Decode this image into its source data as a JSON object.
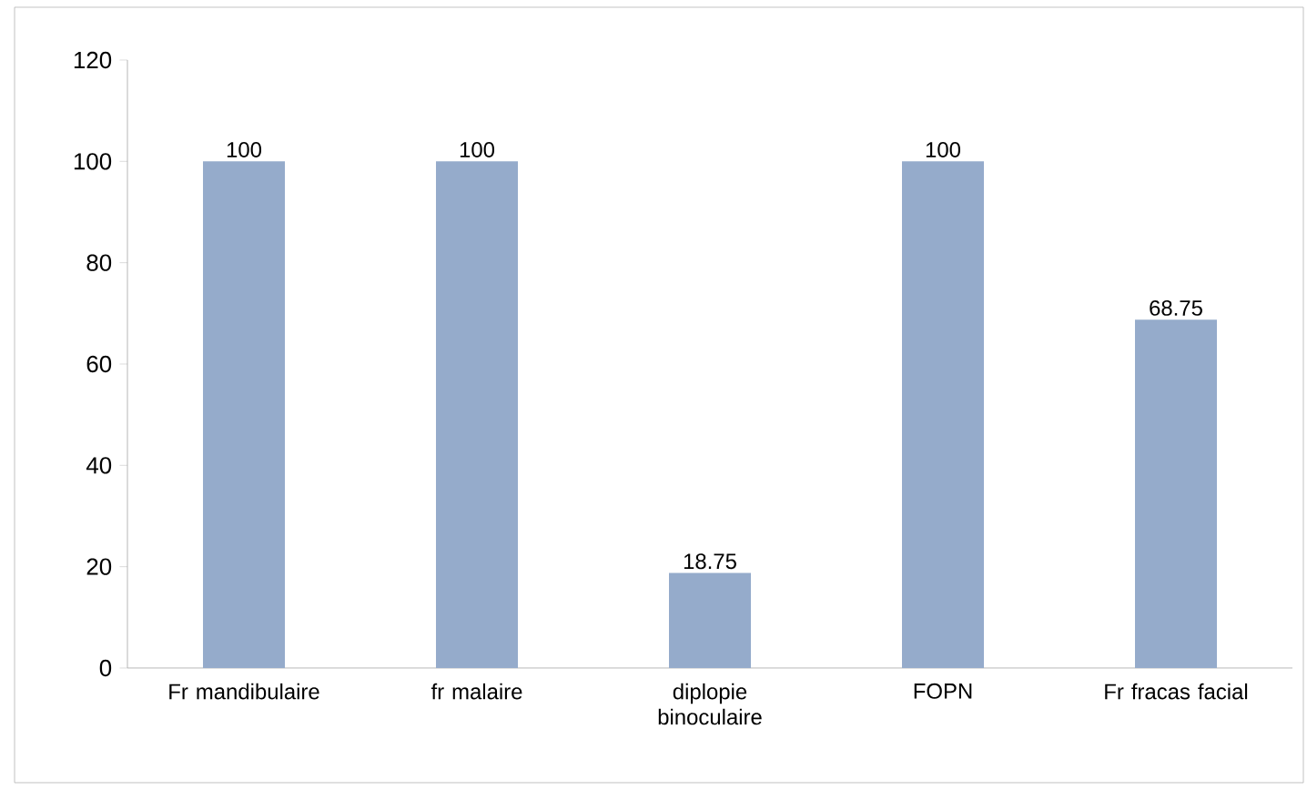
{
  "chart_data": {
    "type": "bar",
    "categories": [
      "Fr mandibulaire",
      "fr malaire",
      "diplopie binoculaire",
      "FOPN",
      "Fr fracas facial"
    ],
    "values": [
      100,
      100,
      18.75,
      100,
      68.75
    ],
    "color": "#95abcb",
    "ylim": [
      0,
      120
    ],
    "yticks": [
      0,
      20,
      40,
      60,
      80,
      100,
      120
    ],
    "data_labels": true,
    "grid": false
  }
}
